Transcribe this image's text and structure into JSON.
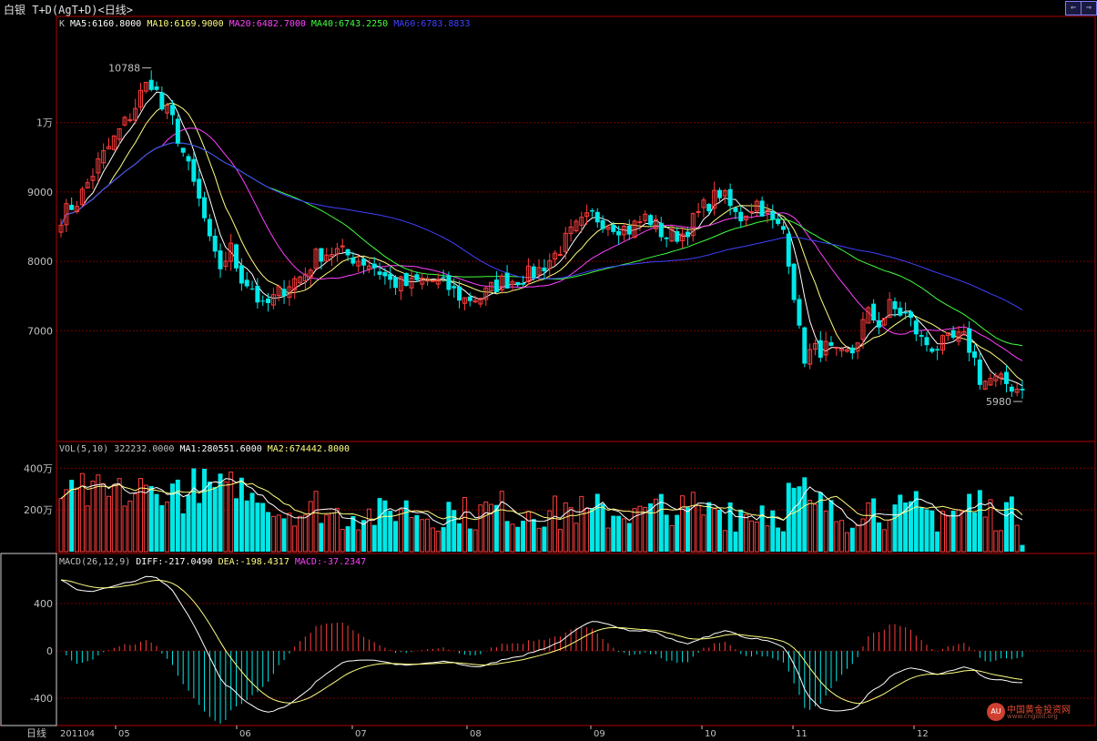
{
  "window": {
    "title": "白银 T+D(AgT+D)<日线>",
    "btn_prev": "⇐",
    "btn_next": "⇒"
  },
  "legend": {
    "price": {
      "k": "K",
      "ma5": "MA5:6160.8000",
      "ma10": "MA10:6169.9000",
      "ma20": "MA20:6482.7000",
      "ma40": "MA40:6743.2250",
      "ma60": "MA60:6783.8833"
    },
    "volume": {
      "vol": "VOL(5,10) 322232.0000",
      "ma1": "MA1:280551.6000",
      "ma2": "MA2:674442.8000"
    },
    "macd": {
      "macd_name": "MACD(26,12,9)",
      "diff": "DIFF:-217.0490",
      "dea": "DEA:-198.4317",
      "macd": "MACD:-37.2347"
    }
  },
  "colors": {
    "up": "#ff3c3c",
    "down": "#00e8e8",
    "ma5": "#ffffff",
    "ma10": "#ffff80",
    "ma20": "#ff40ff",
    "ma40": "#40ff40",
    "ma60": "#4040ff",
    "grid": "#7a0000",
    "border": "#b00000",
    "axis_text": "#c0c0c0"
  },
  "annotations": {
    "high": "10788",
    "low": "5980"
  },
  "footer": {
    "period_label": "日线",
    "start_label": "201104"
  },
  "watermark": {
    "logo": "AU",
    "name": "中国黄金投资网",
    "url": "www.cngold.org"
  },
  "chart_data": [
    {
      "panel": "price",
      "type": "candlestick",
      "period": "daily",
      "x_type": "month",
      "months": [
        "201104",
        "05",
        "06",
        "07",
        "08",
        "09",
        "10",
        "11",
        "12"
      ],
      "y_ticks": [
        7000,
        8000,
        9000,
        10000
      ],
      "y_tick_labels": [
        "7000",
        "8000",
        "9000",
        "1万"
      ],
      "ylim": [
        5600,
        11400
      ],
      "grid": true,
      "high": 10788,
      "low": 5980,
      "series": [
        {
          "name": "MA5",
          "last": 6160.8
        },
        {
          "name": "MA10",
          "last": 6169.9
        },
        {
          "name": "MA20",
          "last": 6482.7
        },
        {
          "name": "MA40",
          "last": 6743.225
        },
        {
          "name": "MA60",
          "last": 6783.8833
        }
      ],
      "closes_anchor": {
        "month_start": [
          8600,
          10300,
          7800,
          7500,
          8400,
          8700,
          8500,
          7100,
          6900
        ],
        "last": 6140
      },
      "candles_count": 182
    },
    {
      "panel": "volume",
      "type": "bar",
      "y_ticks": [
        2000000,
        4000000
      ],
      "y_tick_labels": [
        "200万",
        "400万"
      ],
      "ylim": [
        0,
        4800000
      ],
      "series": [
        {
          "name": "VOL",
          "last": 322232.0
        },
        {
          "name": "MA1",
          "last": 280551.6
        },
        {
          "name": "MA2",
          "last": 674442.8
        }
      ]
    },
    {
      "panel": "macd",
      "type": "line+histogram",
      "y_ticks": [
        -400,
        0,
        400
      ],
      "y_tick_labels": [
        "-400",
        "0",
        "400"
      ],
      "ylim": [
        -580,
        700
      ],
      "series": [
        {
          "name": "DIFF",
          "last": -217.049
        },
        {
          "name": "DEA",
          "last": -198.4317
        },
        {
          "name": "MACD",
          "last": -37.2347
        }
      ]
    }
  ]
}
